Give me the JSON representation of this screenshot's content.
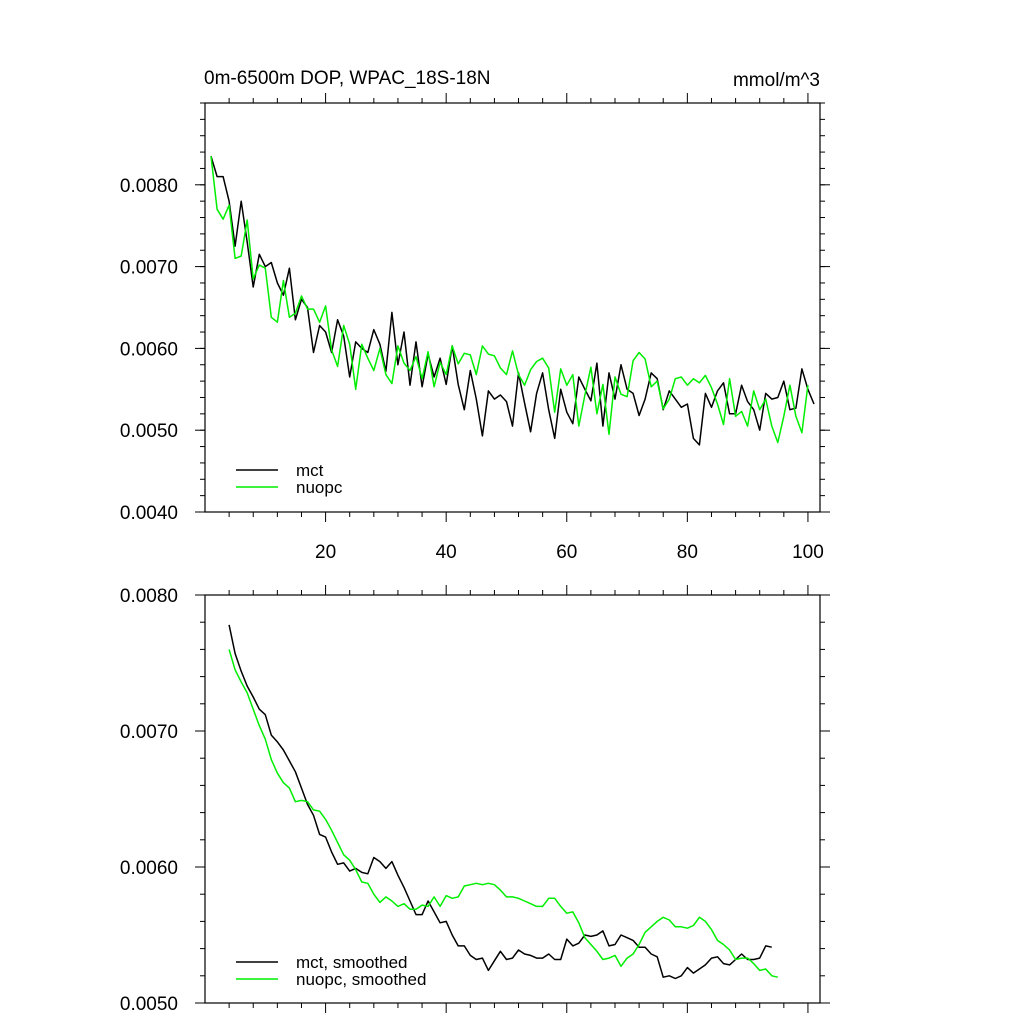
{
  "chart_data": [
    {
      "type": "line",
      "title": "0m-6500m DOP, WPAC_18S-18N",
      "units": "mmol/m^3",
      "xlim": [
        0,
        102
      ],
      "ylim": [
        0.004,
        0.009
      ],
      "xticks": [
        20,
        40,
        60,
        80,
        100
      ],
      "xtick_labels": [
        "20",
        "40",
        "60",
        "80",
        "100"
      ],
      "yticks": [
        0.004,
        0.005,
        0.006,
        0.007,
        0.008
      ],
      "ytick_labels": [
        "0.0040",
        "0.0050",
        "0.0060",
        "0.0070",
        "0.0080"
      ],
      "legend_position": "bottom-left",
      "series": [
        {
          "name": "mct",
          "color": "#000000",
          "x_start": 1,
          "values": [
            0.00835,
            0.0081,
            0.0081,
            0.0078,
            0.00725,
            0.0078,
            0.0073,
            0.00675,
            0.00715,
            0.007,
            0.00705,
            0.0068,
            0.00665,
            0.00698,
            0.00635,
            0.0066,
            0.0065,
            0.00595,
            0.00628,
            0.0062,
            0.00595,
            0.00635,
            0.00615,
            0.00565,
            0.00608,
            0.006,
            0.00595,
            0.00623,
            0.00605,
            0.00572,
            0.00644,
            0.0058,
            0.0062,
            0.00555,
            0.00608,
            0.00553,
            0.00593,
            0.00565,
            0.00588,
            0.00556,
            0.00603,
            0.00556,
            0.00525,
            0.00573,
            0.00538,
            0.00493,
            0.00548,
            0.00538,
            0.00543,
            0.00535,
            0.00505,
            0.0057,
            0.00533,
            0.00498,
            0.00545,
            0.0057,
            0.00525,
            0.0049,
            0.0055,
            0.00522,
            0.00508,
            0.00565,
            0.0055,
            0.00536,
            0.00582,
            0.00505,
            0.0057,
            0.00538,
            0.0058,
            0.0055,
            0.00545,
            0.00518,
            0.00538,
            0.0057,
            0.00563,
            0.00525,
            0.00548,
            0.00538,
            0.00528,
            0.00532,
            0.0049,
            0.00482,
            0.00545,
            0.00528,
            0.00548,
            0.00558,
            0.0052,
            0.0052,
            0.00555,
            0.00535,
            0.00525,
            0.005,
            0.00545,
            0.00538,
            0.0054,
            0.0056,
            0.00525,
            0.00527,
            0.00575,
            0.0055,
            0.00532
          ]
        },
        {
          "name": "nuopc",
          "color": "#00ee00",
          "x_start": 1,
          "values": [
            0.00835,
            0.0077,
            0.00758,
            0.00775,
            0.0071,
            0.00713,
            0.00757,
            0.00685,
            0.00702,
            0.00698,
            0.00638,
            0.00632,
            0.00683,
            0.00638,
            0.00643,
            0.00664,
            0.00648,
            0.00648,
            0.00632,
            0.00652,
            0.00598,
            0.00578,
            0.00628,
            0.00605,
            0.0055,
            0.00605,
            0.00588,
            0.00573,
            0.006,
            0.00568,
            0.00557,
            0.00603,
            0.00582,
            0.00573,
            0.0059,
            0.00563,
            0.00596,
            0.00553,
            0.00583,
            0.00568,
            0.00603,
            0.00581,
            0.00594,
            0.00592,
            0.00568,
            0.00603,
            0.00593,
            0.00591,
            0.00576,
            0.00568,
            0.00597,
            0.00568,
            0.00555,
            0.00574,
            0.00584,
            0.00588,
            0.00576,
            0.00522,
            0.00575,
            0.00555,
            0.00568,
            0.00505,
            0.00543,
            0.00577,
            0.0052,
            0.00556,
            0.00495,
            0.00565,
            0.00544,
            0.00541,
            0.00585,
            0.00595,
            0.00587,
            0.00553,
            0.0056,
            0.00526,
            0.00538,
            0.00563,
            0.00565,
            0.00555,
            0.00563,
            0.00558,
            0.00567,
            0.00552,
            0.00532,
            0.00507,
            0.00563,
            0.00517,
            0.00523,
            0.00505,
            0.00548,
            0.00525,
            0.00538,
            0.00505,
            0.00485,
            0.00517,
            0.00555,
            0.00517,
            0.00497,
            0.00555
          ]
        }
      ]
    },
    {
      "type": "line",
      "title": "",
      "xlim": [
        0,
        102
      ],
      "ylim": [
        0.005,
        0.008
      ],
      "xticks": [
        20,
        40,
        60,
        80,
        100
      ],
      "yticks": [
        0.005,
        0.006,
        0.007,
        0.008
      ],
      "ytick_labels": [
        "0.0050",
        "0.0060",
        "0.0070",
        "0.0080"
      ],
      "legend_position": "bottom-left",
      "series": [
        {
          "name": "mct, smoothed",
          "color": "#000000",
          "x_start": 4,
          "values": [
            0.00778,
            0.00757,
            0.00744,
            0.00733,
            0.00725,
            0.00716,
            0.00712,
            0.00697,
            0.00692,
            0.00686,
            0.00678,
            0.0067,
            0.00658,
            0.00646,
            0.00638,
            0.00624,
            0.00622,
            0.00611,
            0.00602,
            0.00603,
            0.00597,
            0.00599,
            0.00596,
            0.00595,
            0.00607,
            0.00604,
            0.00599,
            0.00604,
            0.00594,
            0.00585,
            0.00575,
            0.00565,
            0.00565,
            0.00575,
            0.00567,
            0.00559,
            0.0056,
            0.0055,
            0.00542,
            0.00542,
            0.00535,
            0.00532,
            0.00533,
            0.00524,
            0.00531,
            0.00538,
            0.00532,
            0.00533,
            0.00539,
            0.00536,
            0.00535,
            0.00533,
            0.00533,
            0.00536,
            0.00532,
            0.00532,
            0.00547,
            0.00542,
            0.00544,
            0.0055,
            0.00549,
            0.0055,
            0.00553,
            0.00542,
            0.00543,
            0.0055,
            0.00548,
            0.00546,
            0.00541,
            0.00541,
            0.00536,
            0.00534,
            0.00519,
            0.0052,
            0.00518,
            0.0052,
            0.00526,
            0.00522,
            0.00525,
            0.00528,
            0.00533,
            0.00534,
            0.00529,
            0.00528,
            0.00532,
            0.00536,
            0.00532,
            0.00532,
            0.00533,
            0.00542,
            0.00541
          ]
        },
        {
          "name": "nuopc, smoothed",
          "color": "#00ee00",
          "x_start": 4,
          "values": [
            0.0076,
            0.00745,
            0.00736,
            0.00728,
            0.00716,
            0.00704,
            0.00694,
            0.00679,
            0.00669,
            0.00662,
            0.00658,
            0.00648,
            0.00649,
            0.00648,
            0.00642,
            0.00641,
            0.00635,
            0.00627,
            0.00618,
            0.00609,
            0.00605,
            0.00598,
            0.00589,
            0.00588,
            0.0058,
            0.00574,
            0.00578,
            0.00575,
            0.00571,
            0.00573,
            0.00569,
            0.00569,
            0.00572,
            0.00571,
            0.00578,
            0.00571,
            0.00579,
            0.00577,
            0.00578,
            0.00586,
            0.00587,
            0.00588,
            0.00587,
            0.00588,
            0.00587,
            0.00583,
            0.00578,
            0.00578,
            0.00577,
            0.00575,
            0.00573,
            0.00571,
            0.00571,
            0.00577,
            0.00577,
            0.00571,
            0.00566,
            0.00567,
            0.00559,
            0.00548,
            0.00543,
            0.00538,
            0.00532,
            0.00533,
            0.00535,
            0.00527,
            0.00533,
            0.00536,
            0.00543,
            0.00552,
            0.00556,
            0.0056,
            0.00563,
            0.00561,
            0.00556,
            0.00556,
            0.00555,
            0.00557,
            0.00563,
            0.0056,
            0.00554,
            0.00546,
            0.00543,
            0.00539,
            0.00532,
            0.00533,
            0.00533,
            0.00529,
            0.00524,
            0.00525,
            0.0052,
            0.00519
          ]
        }
      ]
    }
  ]
}
